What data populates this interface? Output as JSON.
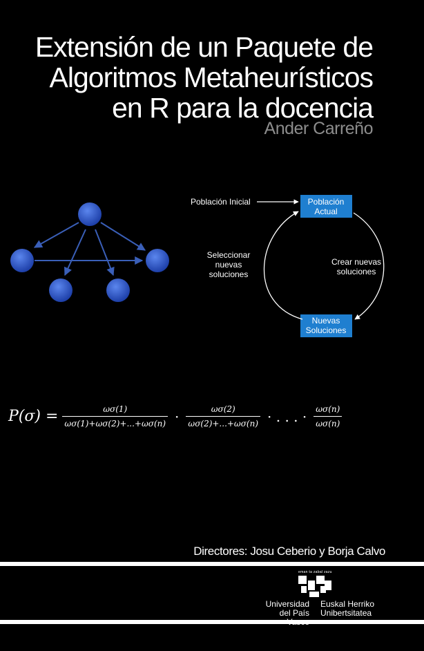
{
  "cover": {
    "title_lines": [
      "Extensión de un Paquete de",
      "Algoritmos  Metaheurísticos",
      "en R para la docencia"
    ],
    "author": "Ander Carreño",
    "directors": "Directores: Josu Ceberio y Borja Calvo"
  },
  "cycle_diagram": {
    "initial_label": "Población Inicial",
    "box_top_lines": [
      "Población",
      "Actual"
    ],
    "box_bottom_lines": [
      "Nuevas",
      "Soluciones"
    ],
    "left_label_lines": [
      "Seleccionar",
      "nuevas",
      "soluciones"
    ],
    "right_label_lines": [
      "Crear nuevas",
      "soluciones"
    ],
    "box_color": "#1f7fd0"
  },
  "graph_diagram": {
    "node_color": "#2f57c8",
    "edge_color": "#3a5fb8"
  },
  "formula": {
    "lhs": "P(σ) =",
    "frac1_num": "ωσ(1)",
    "frac1_den": "ωσ(1)+ωσ(2)+...+ωσ(n)",
    "dot1": "·",
    "frac2_num": "ωσ(2)",
    "frac2_den": "ωσ(2)+...+ωσ(n)",
    "dots": "· . . . ·",
    "frac3_num": "ωσ(n)",
    "frac3_den": "ωσ(n)"
  },
  "logo": {
    "tagline": "eman ta zabal zazu",
    "left_lines": [
      "Universidad",
      "del País Vasco"
    ],
    "right_lines": [
      "Euskal Herriko",
      "Unibertsitatea"
    ]
  }
}
